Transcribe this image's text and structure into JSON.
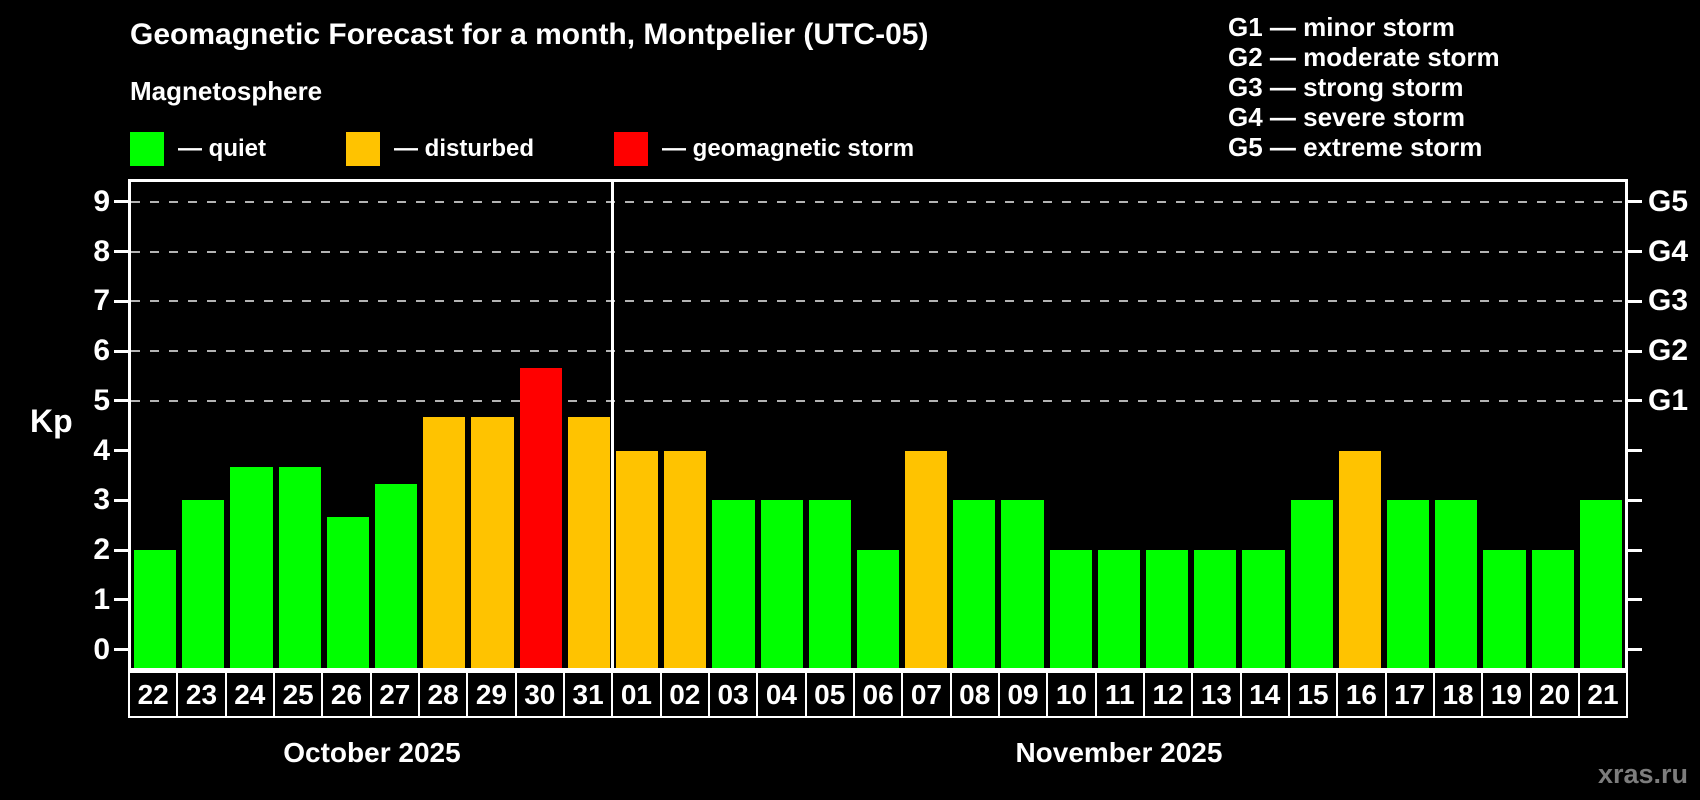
{
  "title": "Geomagnetic Forecast for a month, Montpelier (UTC-05)",
  "subtitle": "Magnetosphere",
  "legend": {
    "items": [
      {
        "status": "quiet",
        "color": "#00ff00",
        "label": "— quiet",
        "x": 130
      },
      {
        "status": "disturbed",
        "color": "#ffc300",
        "label": "— disturbed",
        "x": 346
      },
      {
        "status": "storm",
        "color": "#ff0000",
        "label": "— geomagnetic storm",
        "x": 614
      }
    ]
  },
  "storm_scale_legend": [
    "G1 — minor storm",
    "G2 — moderate storm",
    "G3 — strong storm",
    "G4 — severe storm",
    "G5 — extreme storm"
  ],
  "watermark": "xras.ru",
  "chart_data": {
    "type": "bar",
    "title": "Geomagnetic Forecast for a month, Montpelier (UTC-05)",
    "ylabel": "Kp",
    "ylim": [
      -0.37,
      9.4
    ],
    "yticks": [
      0,
      1,
      2,
      3,
      4,
      5,
      6,
      7,
      8,
      9
    ],
    "gridlines_at": [
      5,
      6,
      7,
      8,
      9
    ],
    "grid": "dashed horizontal, right-axis G-levels",
    "legend_position": "top",
    "right_axis_labels": [
      {
        "kp": 5,
        "label": "G1"
      },
      {
        "kp": 6,
        "label": "G2"
      },
      {
        "kp": 7,
        "label": "G3"
      },
      {
        "kp": 8,
        "label": "G4"
      },
      {
        "kp": 9,
        "label": "G5"
      }
    ],
    "months": [
      {
        "label": "October 2025",
        "days": 10
      },
      {
        "label": "November 2025",
        "days": 21
      }
    ],
    "categories": [
      "22",
      "23",
      "24",
      "25",
      "26",
      "27",
      "28",
      "29",
      "30",
      "31",
      "01",
      "02",
      "03",
      "04",
      "05",
      "06",
      "07",
      "08",
      "09",
      "10",
      "11",
      "12",
      "13",
      "14",
      "15",
      "16",
      "17",
      "18",
      "19",
      "20",
      "21"
    ],
    "bars": [
      {
        "day": "22",
        "value": 2.0,
        "status": "quiet"
      },
      {
        "day": "23",
        "value": 3.0,
        "status": "quiet"
      },
      {
        "day": "24",
        "value": 3.67,
        "status": "quiet"
      },
      {
        "day": "25",
        "value": 3.67,
        "status": "quiet"
      },
      {
        "day": "26",
        "value": 2.67,
        "status": "quiet"
      },
      {
        "day": "27",
        "value": 3.33,
        "status": "quiet"
      },
      {
        "day": "28",
        "value": 4.67,
        "status": "disturbed"
      },
      {
        "day": "29",
        "value": 4.67,
        "status": "disturbed"
      },
      {
        "day": "30",
        "value": 5.67,
        "status": "storm"
      },
      {
        "day": "31",
        "value": 4.67,
        "status": "disturbed"
      },
      {
        "day": "01",
        "value": 4.0,
        "status": "disturbed"
      },
      {
        "day": "02",
        "value": 4.0,
        "status": "disturbed"
      },
      {
        "day": "03",
        "value": 3.0,
        "status": "quiet"
      },
      {
        "day": "04",
        "value": 3.0,
        "status": "quiet"
      },
      {
        "day": "05",
        "value": 3.0,
        "status": "quiet"
      },
      {
        "day": "06",
        "value": 2.0,
        "status": "quiet"
      },
      {
        "day": "07",
        "value": 4.0,
        "status": "disturbed"
      },
      {
        "day": "08",
        "value": 3.0,
        "status": "quiet"
      },
      {
        "day": "09",
        "value": 3.0,
        "status": "quiet"
      },
      {
        "day": "10",
        "value": 2.0,
        "status": "quiet"
      },
      {
        "day": "11",
        "value": 2.0,
        "status": "quiet"
      },
      {
        "day": "12",
        "value": 2.0,
        "status": "quiet"
      },
      {
        "day": "13",
        "value": 2.0,
        "status": "quiet"
      },
      {
        "day": "14",
        "value": 2.0,
        "status": "quiet"
      },
      {
        "day": "15",
        "value": 3.0,
        "status": "quiet"
      },
      {
        "day": "16",
        "value": 4.0,
        "status": "disturbed"
      },
      {
        "day": "17",
        "value": 3.0,
        "status": "quiet"
      },
      {
        "day": "18",
        "value": 3.0,
        "status": "quiet"
      },
      {
        "day": "19",
        "value": 2.0,
        "status": "quiet"
      },
      {
        "day": "20",
        "value": 2.0,
        "status": "quiet"
      },
      {
        "day": "21",
        "value": 3.0,
        "status": "quiet"
      }
    ]
  }
}
